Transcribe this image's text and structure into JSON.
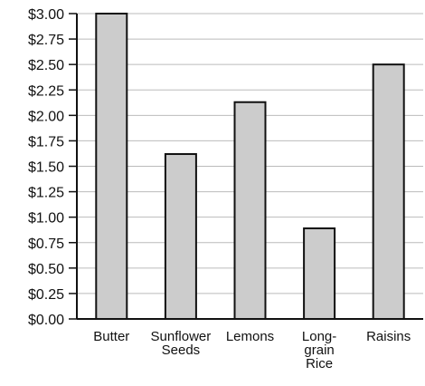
{
  "chart_data": {
    "type": "bar",
    "categories": [
      "Butter",
      "Sunflower Seeds",
      "Lemons",
      "Long-grain Rice",
      "Raisins"
    ],
    "category_label_lines": [
      [
        "Butter"
      ],
      [
        "Sunflower",
        "Seeds"
      ],
      [
        "Lemons"
      ],
      [
        "Long-",
        "grain",
        "Rice"
      ],
      [
        "Raisins"
      ]
    ],
    "values": [
      3.0,
      1.62,
      2.13,
      0.89,
      2.5
    ],
    "ylim": [
      0,
      3.0
    ],
    "y_ticks": [
      0.0,
      0.25,
      0.5,
      0.75,
      1.0,
      1.25,
      1.5,
      1.75,
      2.0,
      2.25,
      2.5,
      2.75,
      3.0
    ],
    "y_tick_labels": [
      "$0.00",
      "$0.25",
      "$0.50",
      "$0.75",
      "$1.00",
      "$1.25",
      "$1.50",
      "$1.75",
      "$2.00",
      "$2.25",
      "$2.50",
      "$2.75",
      "$3.00"
    ],
    "title": "",
    "xlabel": "",
    "ylabel": "",
    "grid": true,
    "colors": {
      "bar_fill": "#cccccc",
      "bar_stroke": "#111111",
      "grid": "#bbbbbb",
      "axis": "#111111"
    }
  }
}
